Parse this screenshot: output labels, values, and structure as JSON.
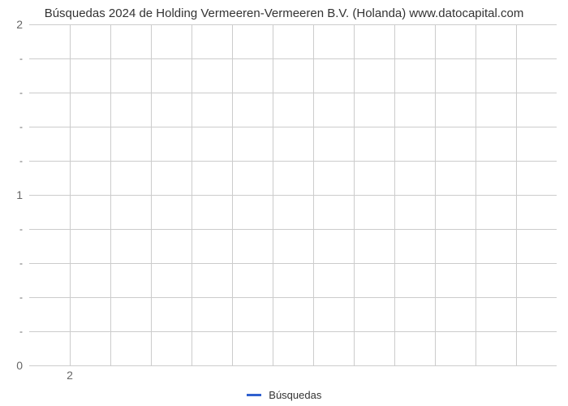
{
  "chart": {
    "type": "line",
    "title": "Búsquedas 2024 de Holding Vermeeren-Vermeeren B.V. (Holanda) www.datocapital.com",
    "title_fontsize": 15,
    "title_color": "#333333",
    "background_color": "#ffffff",
    "grid_color": "#cccccc",
    "grid_major_weight": 1,
    "axis_label_color": "#666666",
    "axis_label_fontsize": 14,
    "x": {
      "min": 0,
      "max": 13,
      "major_ticks": [
        1,
        2,
        3,
        4,
        5,
        6,
        7,
        8,
        9,
        10,
        11,
        12
      ],
      "tick_labels": {
        "1": "2"
      }
    },
    "y": {
      "min": 0,
      "max": 2,
      "major_ticks": [
        0,
        1,
        2
      ],
      "minor_ticks_between": 4
    },
    "series": [],
    "legend": {
      "label": "Búsquedas",
      "line_color": "#3060cf",
      "line_width": 3,
      "swatch_width": 18,
      "text_color": "#333333",
      "fontsize": 13
    }
  }
}
